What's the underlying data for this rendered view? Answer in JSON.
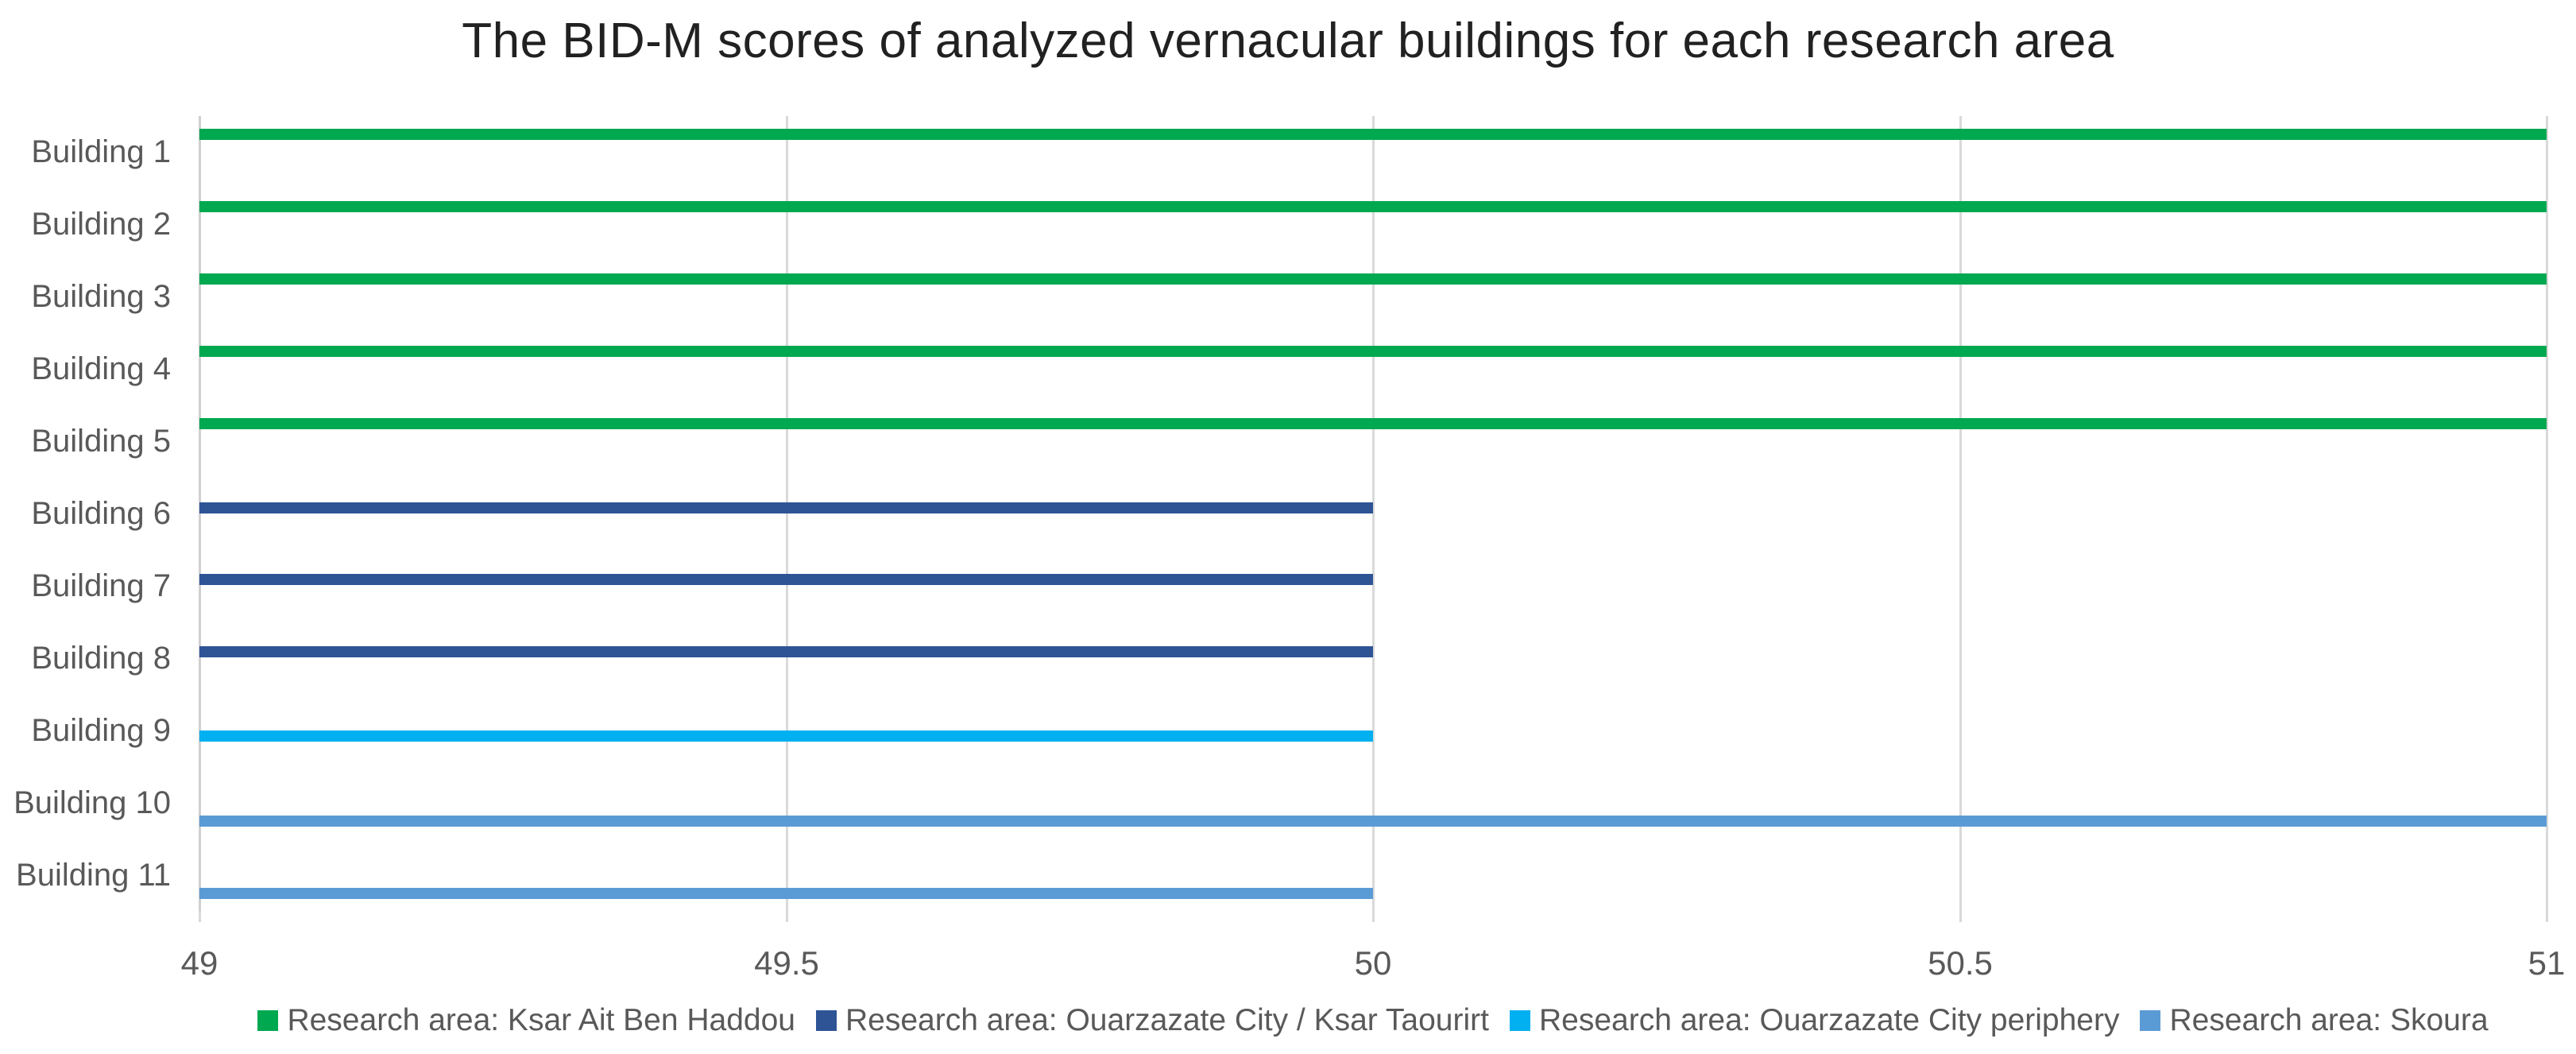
{
  "title": "The BID-M scores of analyzed vernacular buildings for each research area",
  "colors": {
    "series_green": "#00A850",
    "series_navy": "#2E5496",
    "series_cyan": "#00B0F0",
    "series_blue": "#5B9BD5",
    "gridline": "#D9D9D9",
    "axis_line": "#D0D0D0",
    "axis_text": "#595959",
    "title_text": "#212121"
  },
  "chart_data": {
    "type": "bar",
    "orientation": "horizontal",
    "title": "The BID-M scores of analyzed vernacular buildings for each research area",
    "categories": [
      "Building 1",
      "Building 2",
      "Building 3",
      "Building 4",
      "Building 5",
      "Building 6",
      "Building 7",
      "Building 8",
      "Building 9",
      "Building 10",
      "Building 11"
    ],
    "series": [
      {
        "name": "Research area: Ksar Ait Ben Haddou",
        "color": "#00A850",
        "values": [
          51,
          51,
          51,
          51,
          51,
          null,
          null,
          null,
          null,
          null,
          null
        ]
      },
      {
        "name": "Research area: Ouarzazate City / Ksar Taourirt",
        "color": "#2E5496",
        "values": [
          null,
          null,
          null,
          null,
          null,
          50,
          50,
          50,
          null,
          null,
          null
        ]
      },
      {
        "name": "Research area: Ouarzazate City periphery",
        "color": "#00B0F0",
        "values": [
          null,
          null,
          null,
          null,
          null,
          null,
          null,
          null,
          50,
          null,
          null
        ]
      },
      {
        "name": "Research area: Skoura",
        "color": "#5B9BD5",
        "values": [
          null,
          null,
          null,
          null,
          null,
          null,
          null,
          null,
          null,
          51,
          50
        ]
      }
    ],
    "xlim": [
      49,
      51
    ],
    "xticks": [
      49,
      49.5,
      50,
      50.5,
      51
    ],
    "xtick_labels": [
      "49",
      "49.5",
      "50",
      "50.5",
      "51"
    ],
    "xlabel": "",
    "ylabel": "",
    "grid": "vertical-only",
    "legend_position": "bottom"
  }
}
